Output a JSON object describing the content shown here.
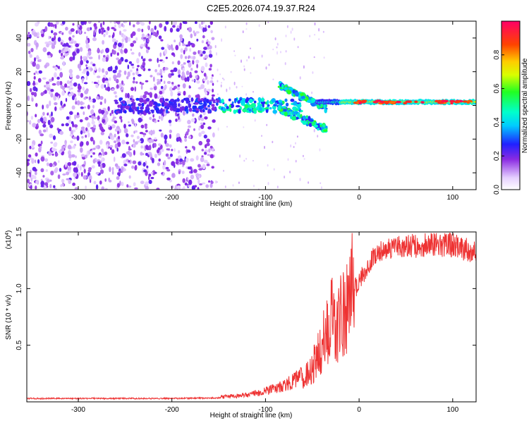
{
  "chart_data": [
    {
      "type": "heatmap",
      "title": "C2E5.2026.074.19.37.R24",
      "xlabel": "Height of straight line (km)",
      "ylabel": "Frequency (Hz)",
      "xlim": [
        -355,
        125
      ],
      "ylim": [
        -50,
        50
      ],
      "x_ticks": [
        -300,
        -200,
        -100,
        0,
        100
      ],
      "y_ticks": [
        -40,
        -20,
        0,
        20,
        40
      ],
      "colorbar": {
        "label": "Normalized spectral amplitude",
        "range": [
          0,
          1
        ],
        "ticks": [
          "0.0",
          "0.2",
          "0.4",
          "0.6",
          "0.8"
        ],
        "tick_values": [
          0.0,
          0.2,
          0.4,
          0.6,
          0.8
        ]
      },
      "features": [
        {
          "name": "broadband noise",
          "x_range": [
            -355,
            -155
          ],
          "freq_range": [
            -50,
            50
          ],
          "amplitude": 0.1
        },
        {
          "name": "emerging signal",
          "x_range": [
            -260,
            -40
          ],
          "freq_center": 0,
          "amplitude": 0.3
        },
        {
          "name": "branching signal",
          "x_range": [
            -85,
            -35
          ],
          "freq_range": [
            -15,
            13
          ],
          "amplitude": 0.4
        },
        {
          "name": "coherent signal",
          "x_range": [
            -45,
            125
          ],
          "freq_center": 2,
          "amplitude": 1.0
        }
      ]
    },
    {
      "type": "line",
      "xlabel": "Height of straight line (km)",
      "ylabel": "SNR (10 * v/v)",
      "multiplier_label": "(x10",
      "multiplier_exponent": "4",
      "multiplier_close": ")",
      "xlim": [
        -355,
        125
      ],
      "ylim": [
        0,
        1.5
      ],
      "x_ticks": [
        -300,
        -200,
        -100,
        0,
        100
      ],
      "y_ticks": [
        "0.5",
        "1.0",
        "1.5"
      ],
      "y_tick_values": [
        0.5,
        1.0,
        1.5
      ],
      "series": [
        {
          "name": "SNR",
          "color": "#ee3333",
          "x": [
            -355,
            -300,
            -250,
            -200,
            -150,
            -120,
            -100,
            -80,
            -60,
            -50,
            -40,
            -35,
            -30,
            -25,
            -20,
            -15,
            -10,
            -5,
            0,
            10,
            20,
            30,
            40,
            50,
            60,
            70,
            80,
            90,
            100,
            110,
            115,
            120,
            125
          ],
          "values": [
            0.03,
            0.03,
            0.03,
            0.03,
            0.035,
            0.05,
            0.08,
            0.12,
            0.2,
            0.28,
            0.45,
            0.6,
            0.75,
            0.55,
            0.75,
            0.7,
            0.9,
            1.0,
            1.05,
            1.22,
            1.32,
            1.35,
            1.36,
            1.37,
            1.38,
            1.38,
            1.4,
            1.38,
            1.38,
            1.36,
            1.35,
            1.33,
            1.32
          ]
        }
      ]
    }
  ]
}
